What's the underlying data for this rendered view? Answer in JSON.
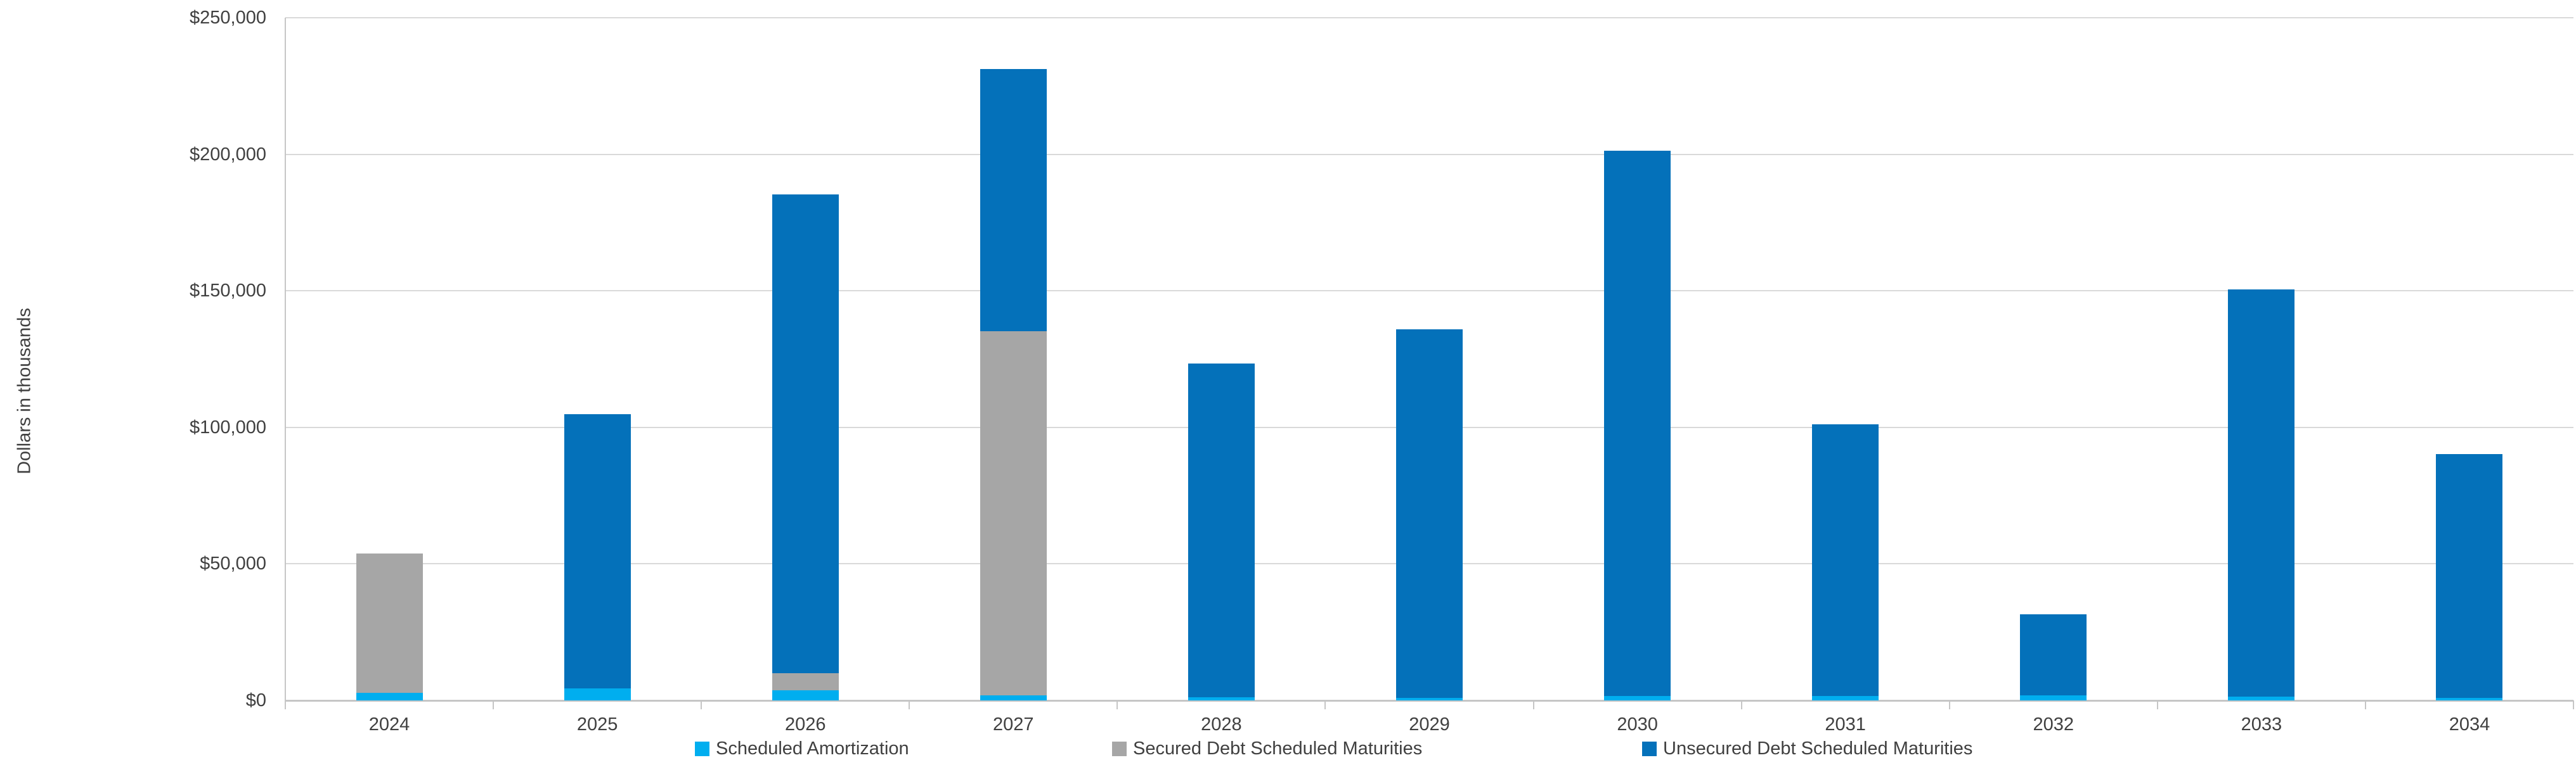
{
  "chart": {
    "ylabel": "Dollars in thousands",
    "y_ticks": [
      "$0",
      "$50,000",
      "$100,000",
      "$150,000",
      "$200,000",
      "$250,000"
    ]
  },
  "chart_data": {
    "type": "bar",
    "stacked": true,
    "title": "",
    "xlabel": "",
    "ylabel": "Dollars in thousands",
    "ylim": [
      0,
      250000
    ],
    "y_tick_interval": 50000,
    "grid": true,
    "legend_position": "bottom",
    "categories": [
      "2024",
      "2025",
      "2026",
      "2027",
      "2028",
      "2029",
      "2030",
      "2031",
      "2032",
      "2033",
      "2034"
    ],
    "series": [
      {
        "name": "Scheduled Amortization",
        "color": "#00AEEF",
        "values": [
          2800,
          4400,
          3800,
          1800,
          1200,
          900,
          1600,
          1600,
          1800,
          1400,
          900
        ]
      },
      {
        "name": "Secured Debt Scheduled Maturities",
        "color": "#A6A6A6",
        "values": [
          50900,
          0,
          6100,
          133500,
          0,
          0,
          0,
          0,
          0,
          0,
          0
        ]
      },
      {
        "name": "Unsecured Debt Scheduled Maturities",
        "color": "#0471BA",
        "values": [
          0,
          100400,
          175400,
          96000,
          122100,
          135100,
          199800,
          99600,
          29800,
          149200,
          89400
        ]
      }
    ],
    "totals": [
      53700,
      104800,
      185300,
      231300,
      123300,
      136000,
      201400,
      101200,
      31600,
      150600,
      90300
    ]
  }
}
